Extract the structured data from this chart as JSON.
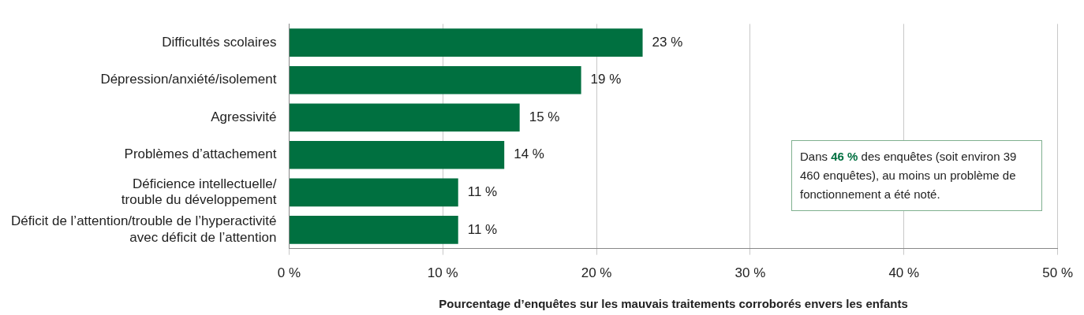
{
  "chart_data": {
    "type": "bar",
    "orientation": "horizontal",
    "categories": [
      "Difficultés scolaires",
      "Dépression/anxiété/isolement",
      "Agressivité",
      "Problèmes d’attachement",
      "Déficience intellectuelle/\ntrouble du développement",
      "Déficit de l’attention/trouble de l’hyperactivité\navec déficit de l’attention"
    ],
    "values": [
      23,
      19,
      15,
      14,
      11,
      11
    ],
    "color": "#007040",
    "value_labels": [
      "23 %",
      "19 %",
      "15 %",
      "14 %",
      "11 %",
      "11 %"
    ],
    "xlim": [
      0,
      50
    ],
    "xticks": [
      {
        "value": 0,
        "label": "0 %"
      },
      {
        "value": 10,
        "label": "10 %"
      },
      {
        "value": 20,
        "label": "20 %"
      },
      {
        "value": 30,
        "label": "30 %"
      },
      {
        "value": 40,
        "label": "40 %"
      },
      {
        "value": 50,
        "label": "50 %"
      }
    ],
    "xlabel": "Pourcentage d’enquêtes sur les mauvais traitements corroborés envers les enfants",
    "grid": "x",
    "legend": false,
    "annotations": [
      "Dans 46 % des enquêtes (soit environ 39 460 enquêtes), au moins un problème de fonctionnement a été noté."
    ]
  }
}
